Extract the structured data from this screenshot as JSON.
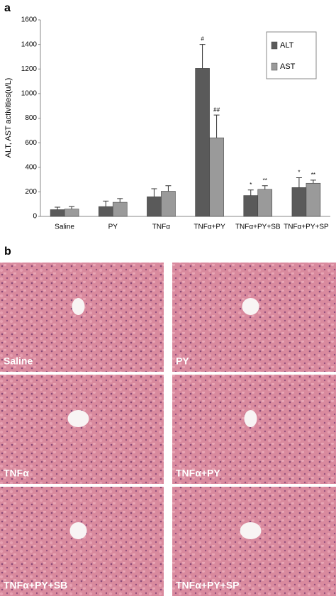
{
  "panel_a": "a",
  "panel_b": "b",
  "chart_data": {
    "type": "bar",
    "y_label": "ALT, AST activities(u/L)",
    "categories": [
      "Saline",
      "PY",
      "TNFα",
      "TNFα+PY",
      "TNFα+PY+SB",
      "TNFα+PY+SP"
    ],
    "series": [
      {
        "name": "ALT",
        "color": "#5a5a5a",
        "values": [
          55,
          80,
          160,
          1205,
          170,
          235
        ],
        "errors": [
          20,
          45,
          65,
          195,
          45,
          80
        ],
        "annotations": [
          null,
          null,
          null,
          "#",
          "*",
          "*"
        ]
      },
      {
        "name": "AST",
        "color": "#9a9a9a",
        "values": [
          60,
          115,
          205,
          640,
          220,
          270
        ],
        "errors": [
          20,
          30,
          45,
          185,
          30,
          25
        ],
        "annotations": [
          null,
          null,
          null,
          "##",
          "**",
          "**"
        ]
      }
    ],
    "ylim": [
      0,
      1600
    ],
    "yticks": [
      0,
      200,
      400,
      600,
      800,
      1000,
      1200,
      1400,
      1600
    ],
    "grid": false,
    "legend": "top-right"
  },
  "images": [
    {
      "label": "Saline"
    },
    {
      "label": "PY"
    },
    {
      "label": "TNFα"
    },
    {
      "label": "TNFα+PY"
    },
    {
      "label": "TNFα+PY+SB"
    },
    {
      "label": "TNFα+PY+SP"
    }
  ]
}
